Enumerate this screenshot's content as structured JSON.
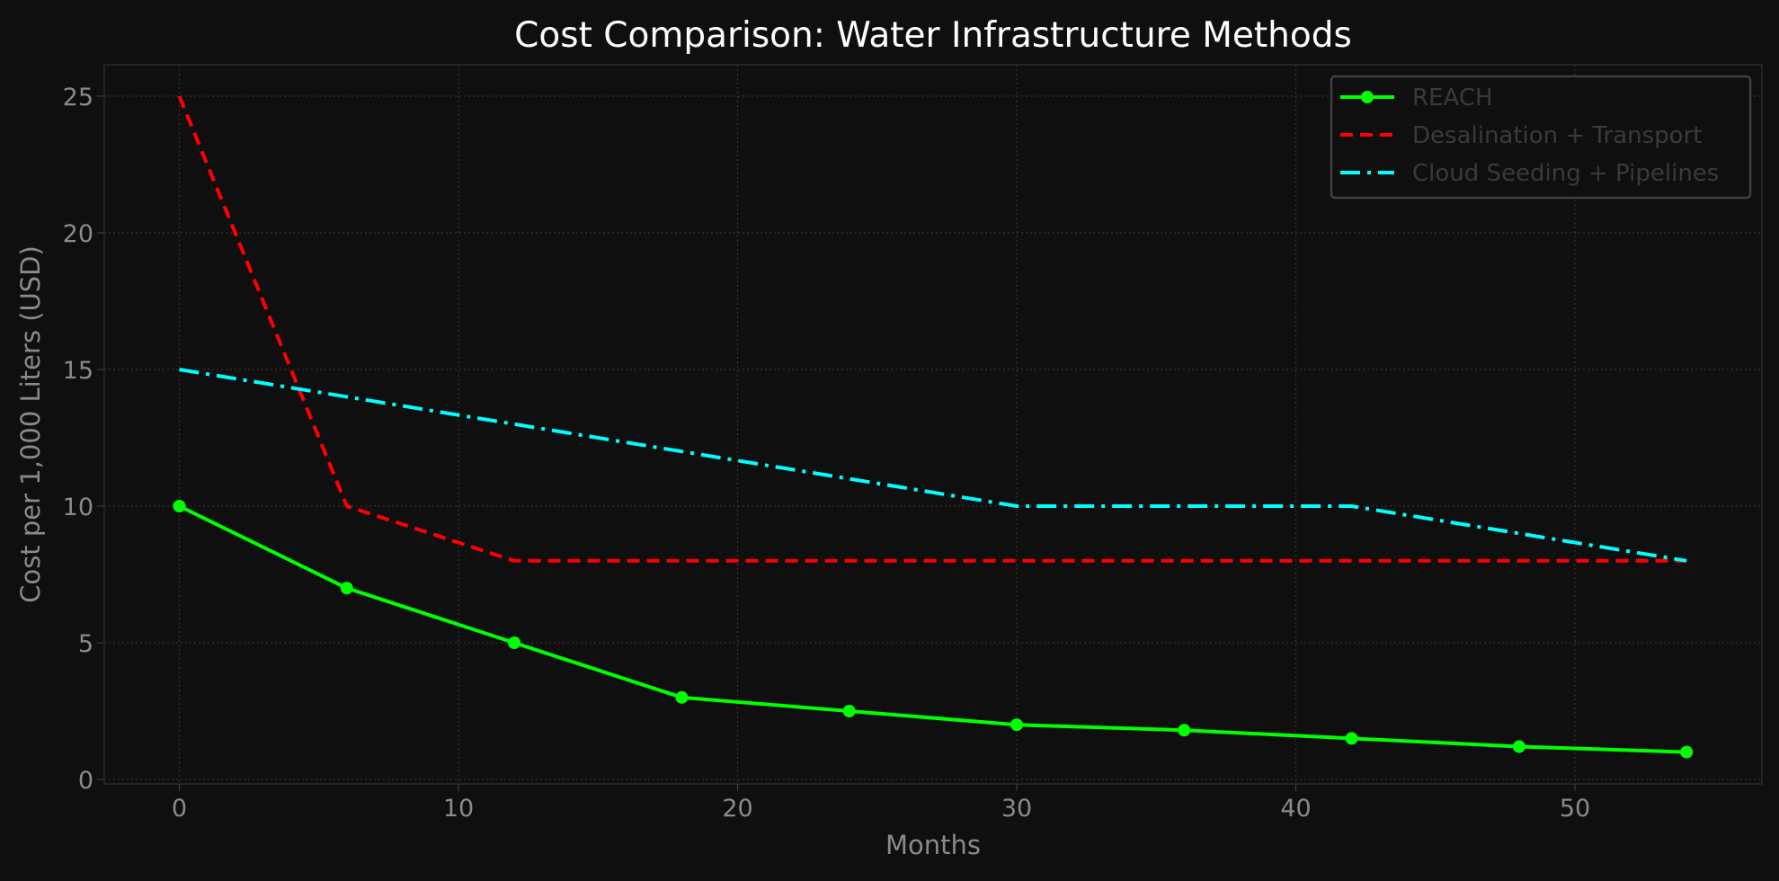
{
  "chart_data": {
    "type": "line",
    "title": "Cost Comparison: Water Infrastructure Methods",
    "xlabel": "Months",
    "ylabel": "Cost per 1,000 Liters (USD)",
    "x": [
      0,
      6,
      12,
      18,
      24,
      30,
      36,
      42,
      48,
      54
    ],
    "xlim": [
      -3,
      57
    ],
    "ylim": [
      -0.25,
      26.2
    ],
    "xticks": [
      0,
      10,
      20,
      30,
      40,
      50
    ],
    "yticks": [
      0,
      5,
      10,
      15,
      20,
      25
    ],
    "grid": true,
    "legend_position": "top-right",
    "background": "#0f0f0f",
    "series": [
      {
        "name": "REACH",
        "values": [
          10,
          7,
          5,
          3,
          2.5,
          2,
          1.8,
          1.5,
          1.2,
          1
        ],
        "color": "#00ff00",
        "style": "solid",
        "marker": "circle"
      },
      {
        "name": "Desalination + Transport",
        "values": [
          25,
          10,
          8,
          8,
          8,
          8,
          8,
          8,
          8,
          8
        ],
        "color": "#ff0000",
        "style": "dashed"
      },
      {
        "name": "Cloud Seeding + Pipelines",
        "values": [
          15,
          14,
          13,
          12,
          11,
          10,
          10,
          10,
          9,
          8
        ],
        "color": "#00ffff",
        "style": "dashdot"
      }
    ]
  }
}
